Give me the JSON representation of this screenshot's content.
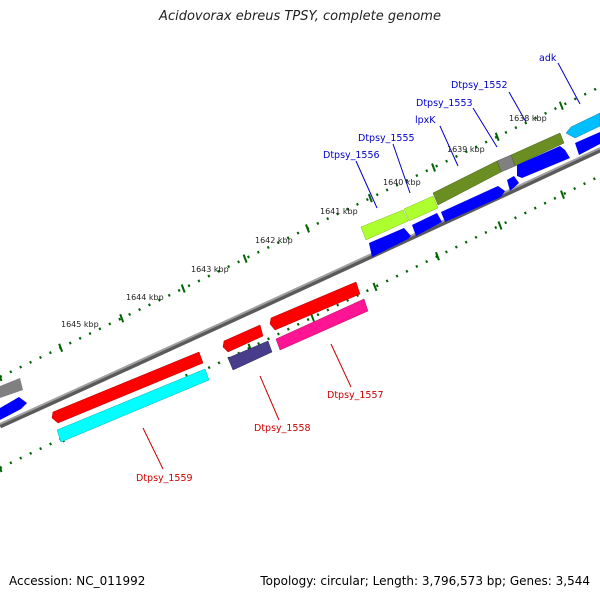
{
  "map": {
    "title": "Acidovorax ebreus TPSY, complete genome",
    "accession_text": "Accession: NC_011992",
    "stats_text": "Topology: circular; Length: 3,796,573 bp; Genes: 3,544"
  },
  "scale_labels": [
    "1638 kbp",
    "1639 kbp",
    "1640 kbp",
    "1641 kbp",
    "1642 kbp",
    "1643 kbp",
    "1644 kbp",
    "1645 kbp"
  ],
  "gene_labels": {
    "forward": [
      "adk",
      "Dtpsy_1552",
      "Dtpsy_1553",
      "lpxK",
      "Dtpsy_1555",
      "Dtpsy_1556"
    ],
    "reverse": [
      "Dtpsy_1557",
      "Dtpsy_1558",
      "Dtpsy_1559"
    ]
  },
  "colors": {
    "backbone": "#808080",
    "scale_ticks": "#006400",
    "forward_label": "#0000cc",
    "reverse_label": "#cc0000",
    "cds": "#0000ff",
    "gene_red": "#ff0000",
    "gene_cyan": "#00ffff",
    "gene_deep_sky": "#00bfff",
    "gene_olive": "#6b8e23",
    "gene_lime": "#adff2f",
    "gene_grey": "#808080",
    "gene_pink": "#ff1493",
    "gene_slate": "#483d8b"
  }
}
